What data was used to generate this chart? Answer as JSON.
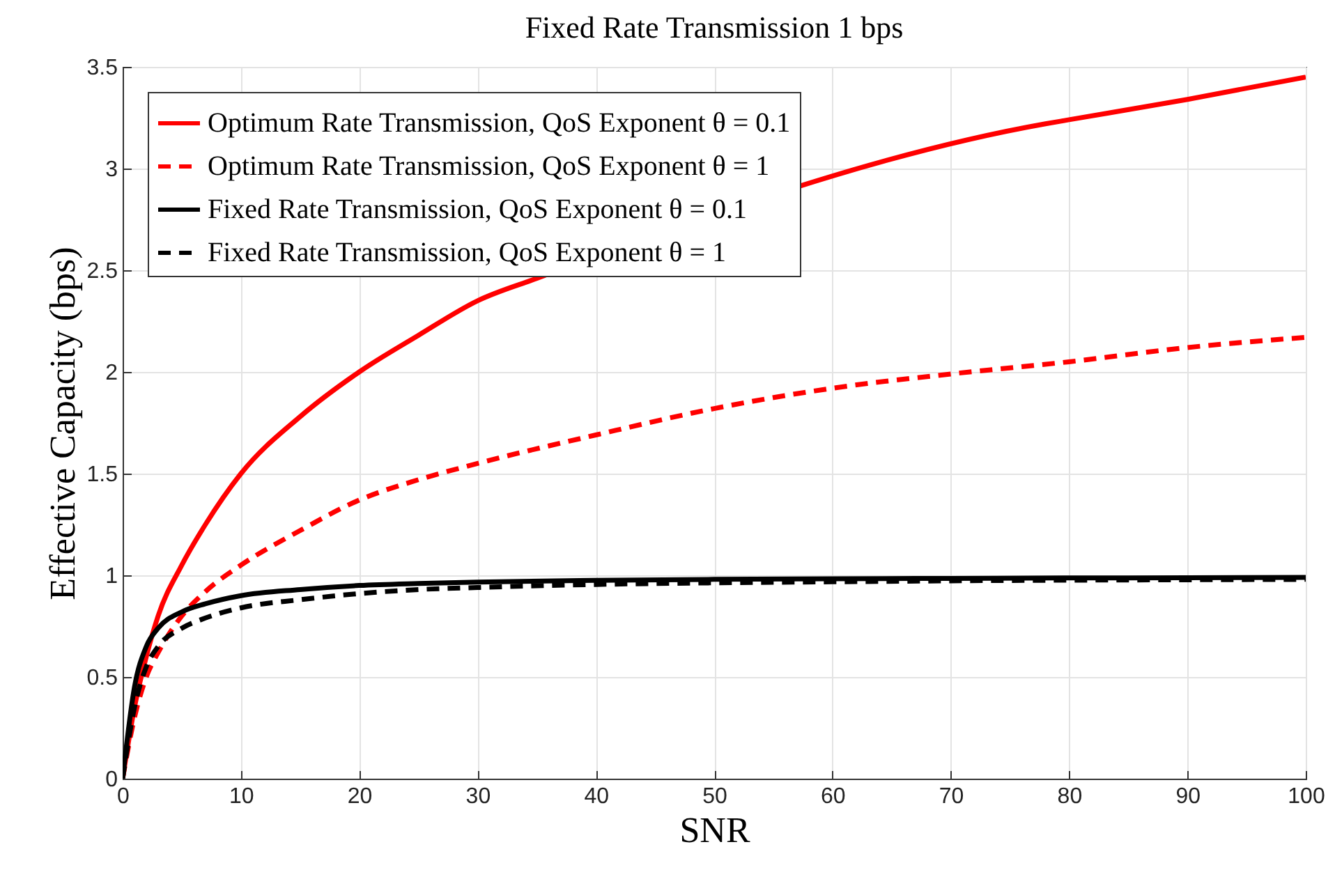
{
  "chart_data": {
    "type": "line",
    "title": "Fixed Rate Transmission 1 bps",
    "xlabel": "SNR",
    "ylabel": "Effective Capacity (bps)",
    "xlim": [
      0,
      100
    ],
    "xticks": [
      0,
      10,
      20,
      30,
      40,
      50,
      60,
      70,
      80,
      90,
      100
    ],
    "ylim": [
      0,
      3.5
    ],
    "yticks": [
      {
        "value": 0,
        "label": "0"
      },
      0.5,
      {
        "value": 1,
        "label": "1"
      },
      1.5,
      {
        "value": 2,
        "label": "2"
      },
      2.5,
      {
        "value": 3,
        "label": "3"
      },
      3.5
    ],
    "grid": true,
    "legend": "top left",
    "x": [
      0,
      1,
      2,
      3,
      5,
      7,
      10,
      15,
      20,
      25,
      30,
      40,
      50,
      60,
      70,
      80,
      90,
      100
    ],
    "series": [
      {
        "name": "Optimum Rate Transmission, QoS Exponent θ = 0.1",
        "color": "#ff0000",
        "line_style": "solid",
        "x": [
          0,
          1,
          2,
          3,
          5,
          7,
          10,
          15,
          20,
          25,
          30,
          35,
          78,
          80,
          90,
          100
        ],
        "values": [
          0,
          0.35,
          0.6,
          0.8,
          1.05,
          1.25,
          1.5,
          1.78,
          2.0,
          2.18,
          2.35,
          2.46,
          3.22,
          3.24,
          3.34,
          3.45
        ]
      },
      {
        "name": "Optimum Rate Transmission, QoS Exponent θ = 1",
        "color": "#ff0000",
        "line_style": "dashed",
        "values": [
          0,
          0.3,
          0.5,
          0.62,
          0.8,
          0.92,
          1.05,
          1.22,
          1.37,
          1.47,
          1.55,
          1.69,
          1.82,
          1.92,
          1.99,
          2.05,
          2.12,
          2.17
        ]
      },
      {
        "name": "Fixed Rate Transmission, QoS Exponent θ = 0.1",
        "color": "#000000",
        "line_style": "solid",
        "values": [
          0,
          0.45,
          0.65,
          0.74,
          0.82,
          0.86,
          0.9,
          0.93,
          0.95,
          0.96,
          0.967,
          0.975,
          0.98,
          0.983,
          0.985,
          0.987,
          0.988,
          0.99
        ]
      },
      {
        "name": "Fixed Rate Transmission, QoS Exponent θ = 1",
        "color": "#000000",
        "line_style": "dashed",
        "values": [
          0,
          0.35,
          0.55,
          0.65,
          0.74,
          0.79,
          0.84,
          0.88,
          0.91,
          0.93,
          0.94,
          0.955,
          0.963,
          0.968,
          0.973,
          0.976,
          0.978,
          0.98
        ]
      }
    ]
  }
}
